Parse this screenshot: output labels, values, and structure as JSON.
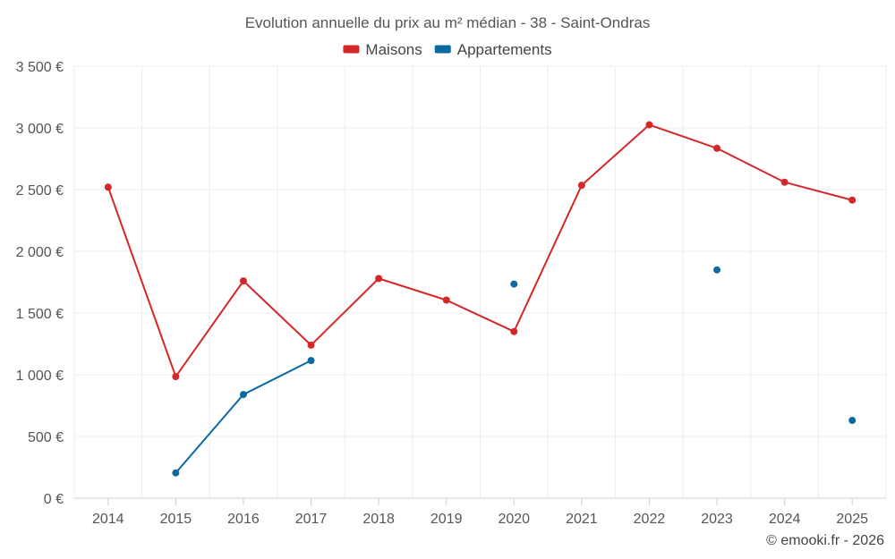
{
  "chart_data": {
    "type": "line",
    "title": "Evolution annuelle du prix au m² médian - 38 - Saint-Ondras",
    "xlabel": "",
    "ylabel": "",
    "categories": [
      "2014",
      "2015",
      "2016",
      "2017",
      "2018",
      "2019",
      "2020",
      "2021",
      "2022",
      "2023",
      "2024",
      "2025"
    ],
    "ylim": [
      0,
      3500
    ],
    "yticks": [
      0,
      500,
      1000,
      1500,
      2000,
      2500,
      3000,
      3500
    ],
    "ytick_labels": [
      "0 €",
      "500 €",
      "1 000 €",
      "1 500 €",
      "2 000 €",
      "2 500 €",
      "3 000 €",
      "3 500 €"
    ],
    "grid": true,
    "legend_position": "top-center",
    "series": [
      {
        "name": "Maisons",
        "color": "#d62728",
        "values": [
          2520,
          985,
          1760,
          1240,
          1780,
          1605,
          1350,
          2535,
          3025,
          2835,
          2560,
          2415
        ]
      },
      {
        "name": "Appartements",
        "color": "#0b6aa2",
        "values": [
          null,
          205,
          840,
          1115,
          null,
          null,
          1735,
          null,
          null,
          1850,
          null,
          630
        ]
      }
    ]
  },
  "credit": "© emooki.fr - 2026"
}
